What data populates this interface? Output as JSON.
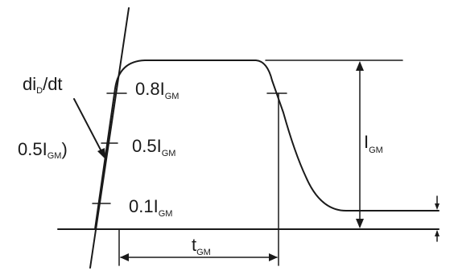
{
  "labels": {
    "di_slope": {
      "base": "di",
      "sub": "D",
      "tail": "/dt"
    },
    "half_gm": {
      "base": "0.5I",
      "sub": "GM",
      "tail": ")"
    },
    "level_08": {
      "base": "0.8I",
      "sub": "GM"
    },
    "level_05": {
      "base": "0.5I",
      "sub": "GM"
    },
    "level_01": {
      "base": "0.1I",
      "sub": "GM"
    },
    "peak": {
      "base": "I",
      "sub": "GM"
    },
    "duration": {
      "base": "t",
      "sub": "GM"
    }
  }
}
